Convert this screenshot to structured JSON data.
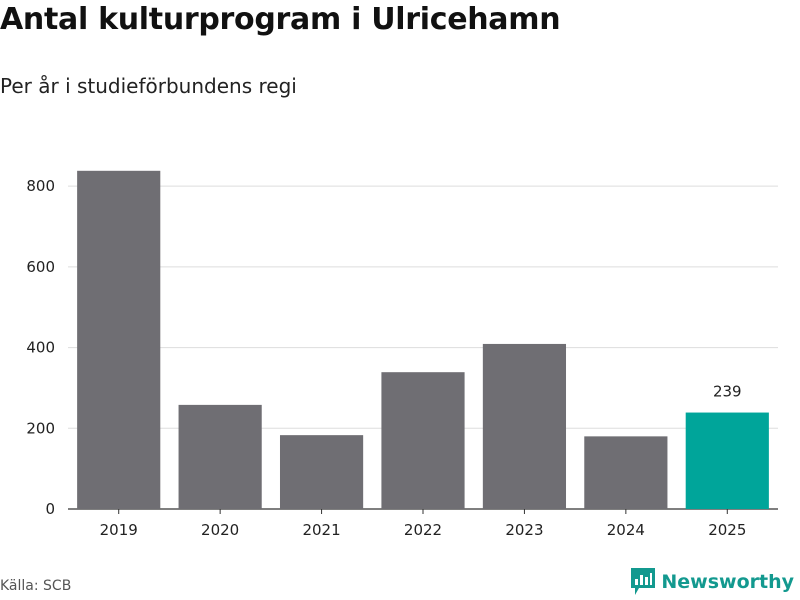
{
  "header": {
    "title": "Antal kulturprogram i Ulricehamn",
    "subtitle": "Per år i studieförbundens regi"
  },
  "footer": {
    "source": "Källa: SCB",
    "brand": "Newsworthy",
    "brand_icon": "newsworthy-logo-icon"
  },
  "colors": {
    "bar": "#6f6e73",
    "highlight": "#00a59a",
    "grid": "#dddddd",
    "axis": "#333333",
    "brand": "#13998f"
  },
  "chart_data": {
    "type": "bar",
    "title": "Antal kulturprogram i Ulricehamn",
    "subtitle": "Per år i studieförbundens regi",
    "categories": [
      "2019",
      "2020",
      "2021",
      "2022",
      "2023",
      "2024",
      "2025"
    ],
    "values": [
      838,
      258,
      183,
      339,
      409,
      180,
      239
    ],
    "highlight_index": 6,
    "data_labels": [
      {
        "index": 6,
        "text": "239"
      }
    ],
    "xlabel": "",
    "ylabel": "",
    "ylim": [
      0,
      840
    ],
    "yticks": [
      0,
      200,
      400,
      600,
      800
    ],
    "grid": true,
    "legend": "none"
  }
}
